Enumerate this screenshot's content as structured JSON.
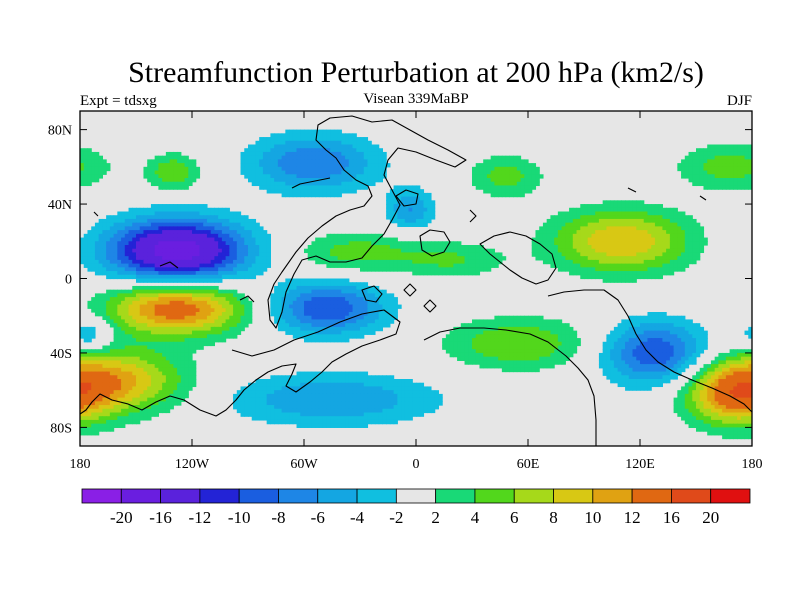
{
  "chart_data": {
    "type": "heatmap",
    "title": "Streamfunction Perturbation at 200 hPa (km2/s)",
    "subtitle_left": "Expt = tdsxg",
    "subtitle_center": "Visean 339MaBP",
    "subtitle_right": "DJF",
    "projection": "cylindrical equidistant",
    "xlim": [
      -180,
      180
    ],
    "ylim": [
      -90,
      90
    ],
    "x_ticks": [
      {
        "value": -180,
        "label": "180"
      },
      {
        "value": -120,
        "label": "120W"
      },
      {
        "value": -60,
        "label": "60W"
      },
      {
        "value": 0,
        "label": "0"
      },
      {
        "value": 60,
        "label": "60E"
      },
      {
        "value": 120,
        "label": "120E"
      },
      {
        "value": 180,
        "label": "180"
      }
    ],
    "y_ticks": [
      {
        "value": 80,
        "label": "80N"
      },
      {
        "value": 40,
        "label": "40N"
      },
      {
        "value": 0,
        "label": "0"
      },
      {
        "value": -40,
        "label": "40S"
      },
      {
        "value": -80,
        "label": "80S"
      }
    ],
    "levels": [
      -20,
      -16,
      -12,
      -10,
      -8,
      -6,
      -4,
      -2,
      2,
      4,
      6,
      8,
      10,
      12,
      16,
      20
    ],
    "colorbar_labels": [
      "-20",
      "-16",
      "-12",
      "-10",
      "-8",
      "-6",
      "-4",
      "-2",
      "2",
      "4",
      "6",
      "8",
      "10",
      "12",
      "16",
      "20"
    ],
    "colors": [
      "#8a1fe6",
      "#6a1ee0",
      "#5a22dc",
      "#2323d6",
      "#1a5ee0",
      "#1e86e6",
      "#14a6e2",
      "#10bfe0",
      "#e6e6e6",
      "#19d977",
      "#52d71c",
      "#a6d91a",
      "#d8c814",
      "#e0a212",
      "#e06812",
      "#e04a1a",
      "#e01010"
    ],
    "features": [
      {
        "name": "northwest-pacific-low",
        "lon": -130,
        "lat": 57,
        "sx": 10,
        "sy": 7,
        "amp": 6
      },
      {
        "name": "north-atlantic-low",
        "lon": -55,
        "lat": 62,
        "sx": 24,
        "sy": 11,
        "amp": -8
      },
      {
        "name": "northeast-atlantic-low",
        "lon": -3,
        "lat": 37,
        "sx": 9,
        "sy": 8,
        "amp": -6
      },
      {
        "name": "central-north-high",
        "lon": 48,
        "lat": 55,
        "sx": 14,
        "sy": 8,
        "amp": 5
      },
      {
        "name": "north-pacific-high",
        "lon": 168,
        "lat": 60,
        "sx": 20,
        "sy": 9,
        "amp": 5
      },
      {
        "name": "east-pacific-low",
        "lon": -128,
        "lat": 15,
        "sx": 26,
        "sy": 12,
        "amp": -18
      },
      {
        "name": "east-pacific-high",
        "lon": -128,
        "lat": -16,
        "sx": 26,
        "sy": 10,
        "amp": 14
      },
      {
        "name": "tropical-atlantic-high",
        "lon": -32,
        "lat": 14,
        "sx": 24,
        "sy": 8,
        "amp": 5
      },
      {
        "name": "indian-ocean-high",
        "lon": 20,
        "lat": 10,
        "sx": 20,
        "sy": 7,
        "amp": 4
      },
      {
        "name": "western-pacific-high",
        "lon": 110,
        "lat": 20,
        "sx": 26,
        "sy": 12,
        "amp": 10
      },
      {
        "name": "south-atlantic-low",
        "lon": -48,
        "lat": -16,
        "sx": 22,
        "sy": 10,
        "amp": -10
      },
      {
        "name": "southern-indian-high",
        "lon": 55,
        "lat": -35,
        "sx": 28,
        "sy": 10,
        "amp": 6
      },
      {
        "name": "southeast-pacific-low",
        "lon": -175,
        "lat": -30,
        "sx": 9,
        "sy": 7,
        "amp": -5
      },
      {
        "name": "southwest-pacific-high",
        "lon": -160,
        "lat": -55,
        "sx": 26,
        "sy": 12,
        "amp": 10
      },
      {
        "name": "south-pacific-high-east",
        "lon": 170,
        "lat": -62,
        "sx": 18,
        "sy": 12,
        "amp": 12
      },
      {
        "name": "australian-low",
        "lon": 128,
        "lat": -40,
        "sx": 20,
        "sy": 12,
        "amp": -10
      },
      {
        "name": "south-polar-low",
        "lon": -45,
        "lat": -65,
        "sx": 40,
        "sy": 10,
        "amp": -6
      }
    ]
  }
}
